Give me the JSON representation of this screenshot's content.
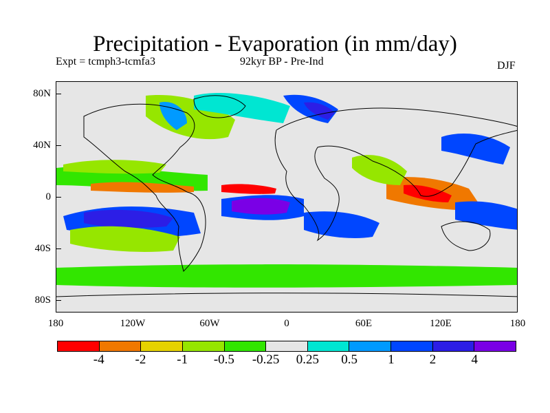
{
  "title": "Precipitation - Evaporation (in mm/day)",
  "experiment": "Expt = tcmph3-tcmfa3",
  "period": "92kyr BP - Pre-Ind",
  "season": "DJF",
  "y_axis": {
    "ticks": [
      "80N",
      "40N",
      "0",
      "40S",
      "80S"
    ],
    "values": [
      80,
      40,
      0,
      -40,
      -80
    ],
    "range": [
      -90,
      90
    ]
  },
  "x_axis": {
    "ticks": [
      "180",
      "120W",
      "60W",
      "0",
      "60E",
      "120E",
      "180"
    ],
    "values": [
      -180,
      -120,
      -60,
      0,
      60,
      120,
      180
    ],
    "range": [
      -180,
      180
    ]
  },
  "colorbar": {
    "colors": [
      "#ff0000",
      "#f07800",
      "#e6d200",
      "#96e600",
      "#32e600",
      "#e6e6e6",
      "#00e6d2",
      "#009aff",
      "#0046ff",
      "#2c1ee6",
      "#7a00e6"
    ],
    "labels": [
      "-4",
      "-2",
      "-1",
      "-0.5",
      "-0.25",
      "0.25",
      "0.5",
      "1",
      "2",
      "4"
    ]
  }
}
